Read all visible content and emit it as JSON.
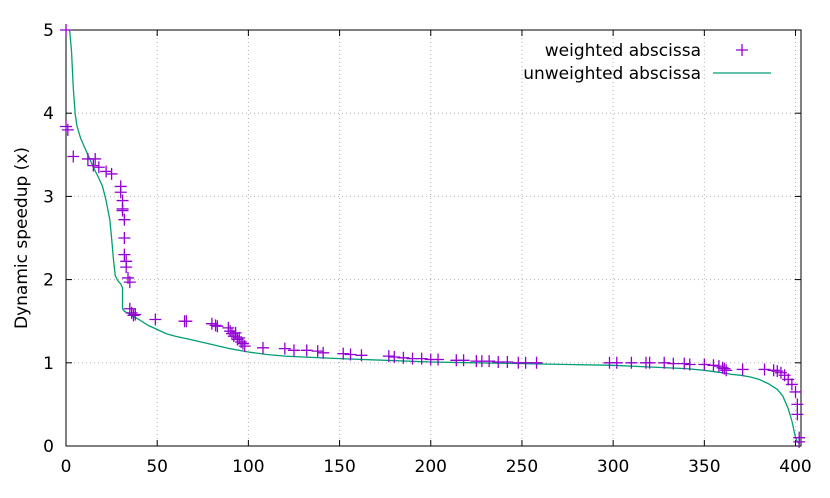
{
  "chart_data": {
    "type": "scatter+line",
    "title": "",
    "xlabel": "",
    "ylabel": "Dynamic speedup (x)",
    "xlim": [
      0,
      403
    ],
    "ylim": [
      0,
      5
    ],
    "xticks": [
      0,
      50,
      100,
      150,
      200,
      250,
      300,
      350,
      400
    ],
    "yticks": [
      0,
      1,
      2,
      3,
      4,
      5
    ],
    "grid": true,
    "legend_position": "top-right",
    "colors": {
      "weighted": "#9400d3",
      "unweighted": "#009e73"
    },
    "series": [
      {
        "name": "weighted abscissa",
        "style": "points",
        "marker": "+",
        "points": [
          [
            0,
            5.0
          ],
          [
            0,
            3.84
          ],
          [
            1,
            3.8
          ],
          [
            4,
            3.48
          ],
          [
            12,
            3.45
          ],
          [
            15,
            3.37
          ],
          [
            16,
            3.45
          ],
          [
            18,
            3.35
          ],
          [
            22,
            3.3
          ],
          [
            25,
            3.27
          ],
          [
            30,
            3.12
          ],
          [
            30,
            3.05
          ],
          [
            31,
            2.95
          ],
          [
            31,
            2.85
          ],
          [
            31,
            2.83
          ],
          [
            32,
            2.72
          ],
          [
            32,
            2.5
          ],
          [
            32,
            2.3
          ],
          [
            33,
            2.22
          ],
          [
            33,
            2.15
          ],
          [
            34,
            2.02
          ],
          [
            35,
            1.97
          ],
          [
            35,
            1.65
          ],
          [
            36,
            1.6
          ],
          [
            37,
            1.57
          ],
          [
            38,
            1.58
          ],
          [
            49,
            1.52
          ],
          [
            65,
            1.5
          ],
          [
            66,
            1.5
          ],
          [
            80,
            1.47
          ],
          [
            82,
            1.45
          ],
          [
            83,
            1.44
          ],
          [
            89,
            1.42
          ],
          [
            90,
            1.38
          ],
          [
            91,
            1.35
          ],
          [
            92,
            1.32
          ],
          [
            93,
            1.36
          ],
          [
            94,
            1.28
          ],
          [
            95,
            1.3
          ],
          [
            96,
            1.25
          ],
          [
            97,
            1.23
          ],
          [
            98,
            1.2
          ],
          [
            108,
            1.18
          ],
          [
            120,
            1.17
          ],
          [
            125,
            1.15
          ],
          [
            132,
            1.15
          ],
          [
            138,
            1.14
          ],
          [
            141,
            1.12
          ],
          [
            152,
            1.11
          ],
          [
            156,
            1.1
          ],
          [
            162,
            1.09
          ],
          [
            177,
            1.08
          ],
          [
            180,
            1.07
          ],
          [
            185,
            1.06
          ],
          [
            190,
            1.05
          ],
          [
            195,
            1.05
          ],
          [
            200,
            1.04
          ],
          [
            204,
            1.04
          ],
          [
            214,
            1.03
          ],
          [
            218,
            1.03
          ],
          [
            225,
            1.02
          ],
          [
            228,
            1.02
          ],
          [
            232,
            1.02
          ],
          [
            237,
            1.01
          ],
          [
            242,
            1.01
          ],
          [
            248,
            1.0
          ],
          [
            252,
            1.0
          ],
          [
            258,
            1.0
          ],
          [
            298,
            1.0
          ],
          [
            302,
            1.0
          ],
          [
            310,
            1.0
          ],
          [
            318,
            1.0
          ],
          [
            320,
            1.0
          ],
          [
            328,
            1.0
          ],
          [
            333,
            0.99
          ],
          [
            339,
            0.99
          ],
          [
            342,
            0.98
          ],
          [
            350,
            0.98
          ],
          [
            355,
            0.97
          ],
          [
            358,
            0.96
          ],
          [
            360,
            0.94
          ],
          [
            361,
            0.93
          ],
          [
            362,
            0.91
          ],
          [
            371,
            0.92
          ],
          [
            383,
            0.92
          ],
          [
            388,
            0.91
          ],
          [
            390,
            0.9
          ],
          [
            392,
            0.88
          ],
          [
            394,
            0.85
          ],
          [
            396,
            0.8
          ],
          [
            398,
            0.74
          ],
          [
            400,
            0.65
          ],
          [
            401,
            0.5
          ],
          [
            401,
            0.38
          ],
          [
            402,
            0.1
          ],
          [
            402,
            0.05
          ]
        ]
      },
      {
        "name": "unweighted abscissa",
        "style": "line",
        "points": [
          [
            2,
            5.0
          ],
          [
            3,
            4.75
          ],
          [
            4,
            4.3
          ],
          [
            5,
            4.0
          ],
          [
            6,
            3.85
          ],
          [
            8,
            3.7
          ],
          [
            10,
            3.6
          ],
          [
            12,
            3.5
          ],
          [
            15,
            3.35
          ],
          [
            18,
            3.22
          ],
          [
            20,
            3.12
          ],
          [
            22,
            2.95
          ],
          [
            24,
            2.72
          ],
          [
            25,
            2.5
          ],
          [
            26,
            2.25
          ],
          [
            27,
            2.05
          ],
          [
            28,
            2.0
          ],
          [
            29,
            1.97
          ],
          [
            30,
            1.95
          ],
          [
            31,
            1.9
          ],
          [
            31,
            1.65
          ],
          [
            32,
            1.62
          ],
          [
            35,
            1.58
          ],
          [
            40,
            1.52
          ],
          [
            45,
            1.45
          ],
          [
            50,
            1.4
          ],
          [
            55,
            1.35
          ],
          [
            60,
            1.32
          ],
          [
            70,
            1.27
          ],
          [
            80,
            1.22
          ],
          [
            90,
            1.17
          ],
          [
            100,
            1.13
          ],
          [
            110,
            1.1
          ],
          [
            120,
            1.08
          ],
          [
            130,
            1.07
          ],
          [
            150,
            1.05
          ],
          [
            175,
            1.03
          ],
          [
            200,
            1.01
          ],
          [
            225,
            1.0
          ],
          [
            250,
            0.99
          ],
          [
            275,
            0.98
          ],
          [
            300,
            0.97
          ],
          [
            320,
            0.95
          ],
          [
            340,
            0.93
          ],
          [
            350,
            0.91
          ],
          [
            360,
            0.88
          ],
          [
            365,
            0.86
          ],
          [
            370,
            0.85
          ],
          [
            375,
            0.83
          ],
          [
            380,
            0.8
          ],
          [
            385,
            0.75
          ],
          [
            390,
            0.68
          ],
          [
            393,
            0.6
          ],
          [
            396,
            0.45
          ],
          [
            398,
            0.3
          ],
          [
            400,
            0.1
          ],
          [
            401,
            0.05
          ],
          [
            402,
            0.03
          ]
        ]
      }
    ]
  }
}
